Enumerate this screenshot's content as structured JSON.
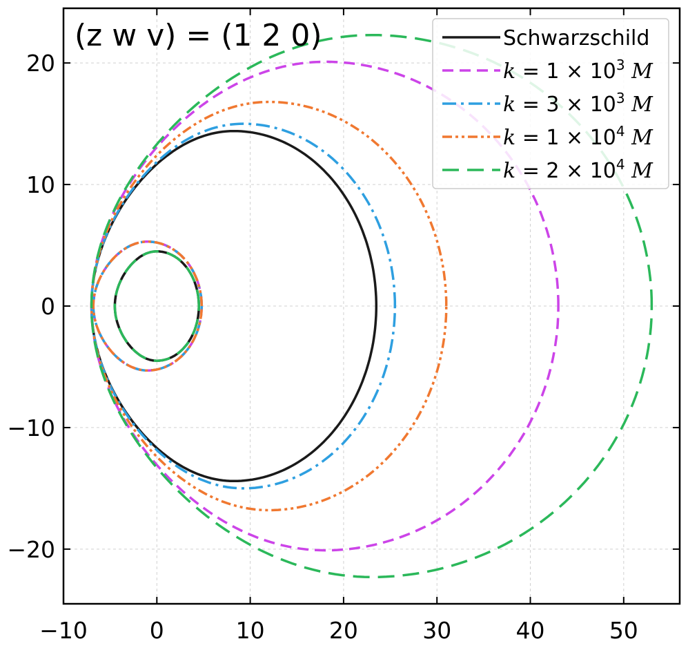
{
  "chart_data": {
    "type": "line",
    "title": "",
    "xlabel": "",
    "ylabel": "",
    "xlim": [
      -10,
      56
    ],
    "ylim": [
      -24.5,
      24.5
    ],
    "xticks": [
      -10,
      0,
      10,
      20,
      30,
      40,
      50
    ],
    "yticks": [
      -20,
      -10,
      0,
      10,
      20
    ],
    "xtick_labels": [
      "−10",
      "0",
      "10",
      "20",
      "30",
      "40",
      "50"
    ],
    "ytick_labels": [
      "−20",
      "−10",
      "0",
      "10",
      "20"
    ],
    "grid": true,
    "legend_position": "top-right",
    "annotation": {
      "text": "(z w v) = (1 2 0)"
    },
    "series": [
      {
        "name": "Schwarzschild",
        "legend_parts": [
          "Schwarzschild"
        ],
        "color": "#1a1a1a",
        "dash": "solid",
        "outer_loop": {
          "xmin": -7,
          "xmax": 23.5,
          "ymax": 14.4
        },
        "inner_loop": {
          "xmin": -4.5,
          "xmax": 4.5,
          "ymax": 4.5
        }
      },
      {
        "name": "k = 1 × 10^3 M",
        "legend_parts": [
          "k",
          " = 1 × 10",
          "3",
          " M"
        ],
        "color": "#cc44e8",
        "dash": "dashed",
        "outer_loop": {
          "xmin": -7,
          "xmax": 43,
          "ymax": 20.1
        },
        "inner_loop": {
          "xmin": -6.8,
          "xmax": 4.8,
          "ymax": 5.3
        }
      },
      {
        "name": "k = 3 × 10^3 M",
        "legend_parts": [
          "k",
          " = 3 × 10",
          "3",
          " M"
        ],
        "color": "#2e9fe0",
        "dash": "dashdot",
        "outer_loop": {
          "xmin": -7,
          "xmax": 25.5,
          "ymax": 15.0
        },
        "inner_loop": {
          "xmin": -6.8,
          "xmax": 4.8,
          "ymax": 5.3
        }
      },
      {
        "name": "k = 1 × 10^4 M",
        "legend_parts": [
          "k",
          " = 1 × 10",
          "4",
          " M"
        ],
        "color": "#f07830",
        "dash": "dashdotdot",
        "outer_loop": {
          "xmin": -7,
          "xmax": 31,
          "ymax": 16.8
        },
        "inner_loop": {
          "xmin": -6.8,
          "xmax": 4.8,
          "ymax": 5.3
        }
      },
      {
        "name": "k = 2 × 10^4 M",
        "legend_parts": [
          "k",
          " = 2 × 10",
          "4",
          " M"
        ],
        "color": "#2bb85a",
        "dash": "longdash",
        "outer_loop": {
          "xmin": -7,
          "xmax": 53,
          "ymax": 22.3
        },
        "inner_loop": {
          "xmin": -4.5,
          "xmax": 4.5,
          "ymax": 4.5
        }
      }
    ]
  }
}
